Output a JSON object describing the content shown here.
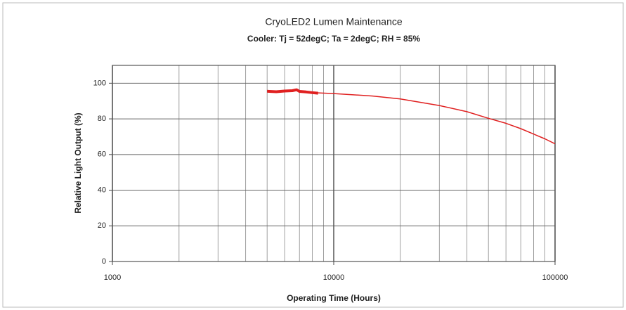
{
  "chart_data": {
    "type": "line",
    "title": "CryoLED2 Lumen Maintenance",
    "subtitle": "Cooler: Tj = 52degC; Ta = 2degC; RH = 85%",
    "x_label": "Operating Time (Hours)",
    "y_label": "Relative Light Output (%)",
    "xscale": "log",
    "xlim": [
      1000,
      100000
    ],
    "xticks": [
      1000,
      10000,
      100000
    ],
    "xgrid_minor": [
      2000,
      3000,
      4000,
      5000,
      6000,
      7000,
      8000,
      9000,
      20000,
      30000,
      40000,
      50000,
      60000,
      70000,
      80000,
      90000
    ],
    "ylim": [
      0,
      110
    ],
    "yticks": [
      0,
      20,
      40,
      60,
      80,
      100
    ],
    "grid": true,
    "series": [
      {
        "color": "#e02020",
        "width": 4,
        "x": [
          5000,
          5500,
          6000,
          6500,
          6800,
          7000,
          7500,
          8000,
          8500
        ],
        "values": [
          95.5,
          95.2,
          95.6,
          95.8,
          96.3,
          95.4,
          95.1,
          94.7,
          94.4
        ]
      },
      {
        "color": "#e02020",
        "width": 1.5,
        "x": [
          8500,
          10000,
          15000,
          20000,
          30000,
          40000,
          50000,
          60000,
          70000,
          80000,
          90000,
          100000
        ],
        "values": [
          94.6,
          94.2,
          92.8,
          91.2,
          87.5,
          84,
          80.3,
          77.5,
          74.5,
          71.5,
          68.8,
          66
        ]
      }
    ]
  }
}
